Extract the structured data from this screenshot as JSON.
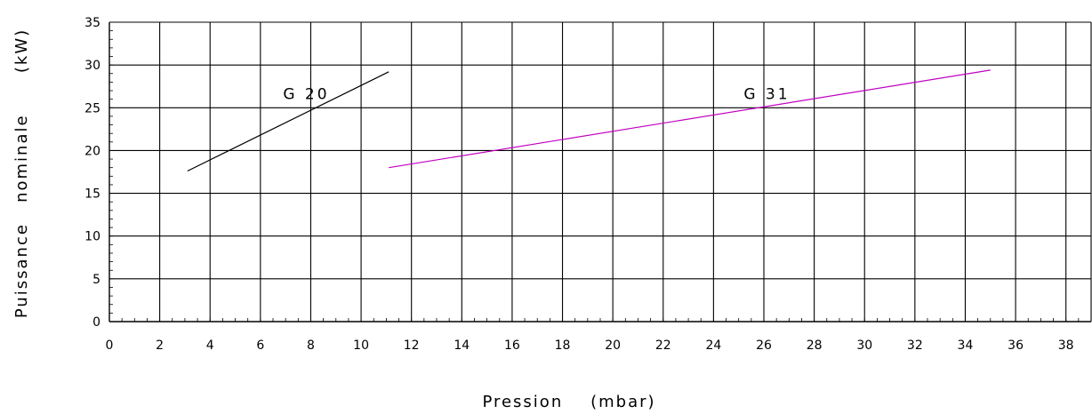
{
  "chart_data": {
    "type": "line",
    "xlabel": "Pression    (mbar)",
    "ylabel": "Puissance   nominale      (kW)",
    "xlim": [
      0,
      39
    ],
    "ylim": [
      0,
      35
    ],
    "x_ticks": [
      "0",
      "2",
      "4",
      "6",
      "8",
      "10",
      "12",
      "14",
      "16",
      "18",
      "20",
      "22",
      "24",
      "26",
      "28",
      "30",
      "32",
      "34",
      "36",
      "38"
    ],
    "y_ticks": [
      "0",
      "5",
      "10",
      "15",
      "20",
      "25",
      "30",
      "35"
    ],
    "grid": true,
    "series": [
      {
        "name": "G  20",
        "color": "#000000",
        "x": [
          3.1,
          11.1
        ],
        "y": [
          17.6,
          29.2
        ]
      },
      {
        "name": "G  31",
        "color": "#c000c0",
        "x": [
          11.1,
          35.0
        ],
        "y": [
          18.0,
          29.4
        ]
      }
    ]
  }
}
